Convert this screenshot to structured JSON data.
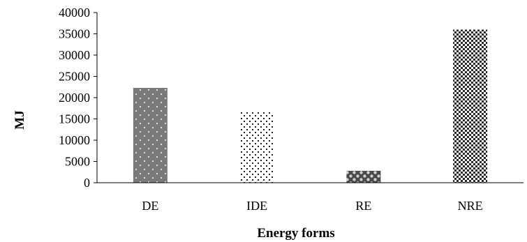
{
  "chart_data": {
    "type": "bar",
    "title": "",
    "xlabel": "Energy forms",
    "ylabel": "MJ",
    "categories": [
      "DE",
      "IDE",
      "RE",
      "NRE"
    ],
    "values": [
      22300,
      16600,
      2800,
      36000
    ],
    "ylim": [
      0,
      40000
    ],
    "yticks": [
      0,
      5000,
      10000,
      15000,
      20000,
      25000,
      30000,
      35000,
      40000
    ],
    "grid": false,
    "legend": "none",
    "bar_fills": [
      "gray-dotted",
      "sparse-dots",
      "dark-checker",
      "fine-checker"
    ]
  }
}
